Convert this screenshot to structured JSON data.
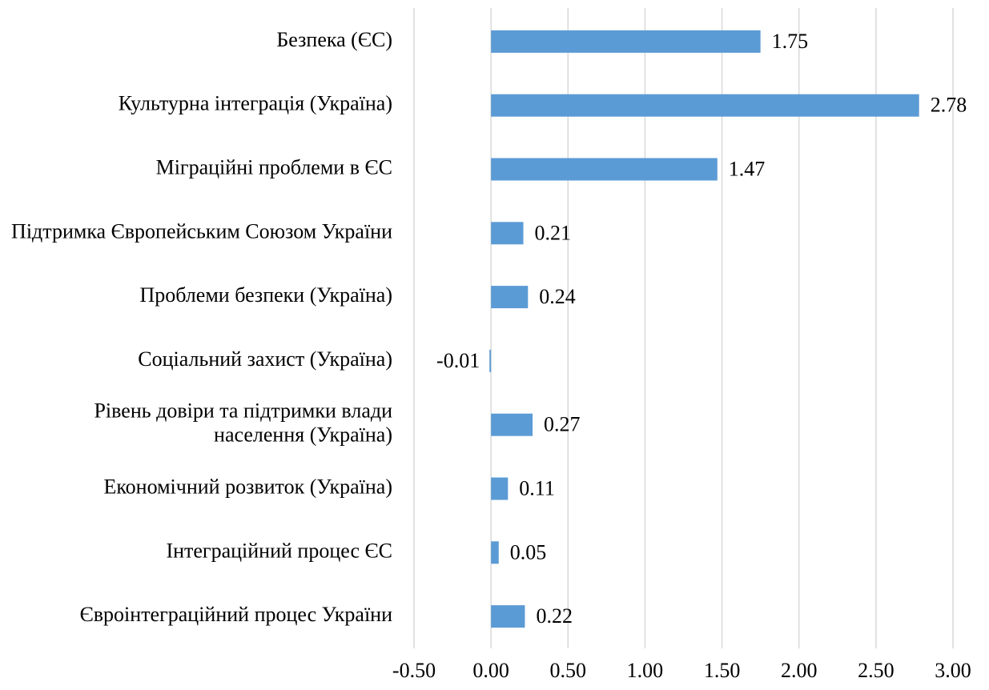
{
  "chart_data": {
    "type": "hbar",
    "categories": [
      "Безпека (ЄС)",
      "Культурна інтеграція (Україна)",
      "Міграційні проблеми в ЄС",
      "Підтримка Європейським Союзом України",
      "Проблеми безпеки (Україна)",
      "Соціальний захист (Україна)",
      "Рівень довіри та підтримки влади населення (Україна)",
      "Економічний розвиток (Україна)",
      "Інтеграційний процес ЄС",
      "Євроінтеграційний процес України"
    ],
    "values": [
      1.75,
      2.78,
      1.47,
      0.21,
      0.24,
      -0.01,
      0.27,
      0.11,
      0.05,
      0.22
    ],
    "color": "#5b9bd5",
    "xlim": [
      -0.5,
      3.0
    ],
    "xticks": [
      {
        "value": -0.5,
        "label": "-0.50"
      },
      {
        "value": 0,
        "label": "0.00"
      },
      {
        "value": 0.5,
        "label": "0.50"
      },
      {
        "value": 1.0,
        "label": "1.00"
      },
      {
        "value": 1.5,
        "label": "1.50"
      },
      {
        "value": 2.0,
        "label": "2.00"
      },
      {
        "value": 2.5,
        "label": "2.50"
      },
      {
        "value": 3.0,
        "label": "3.00"
      }
    ],
    "grid": true
  }
}
